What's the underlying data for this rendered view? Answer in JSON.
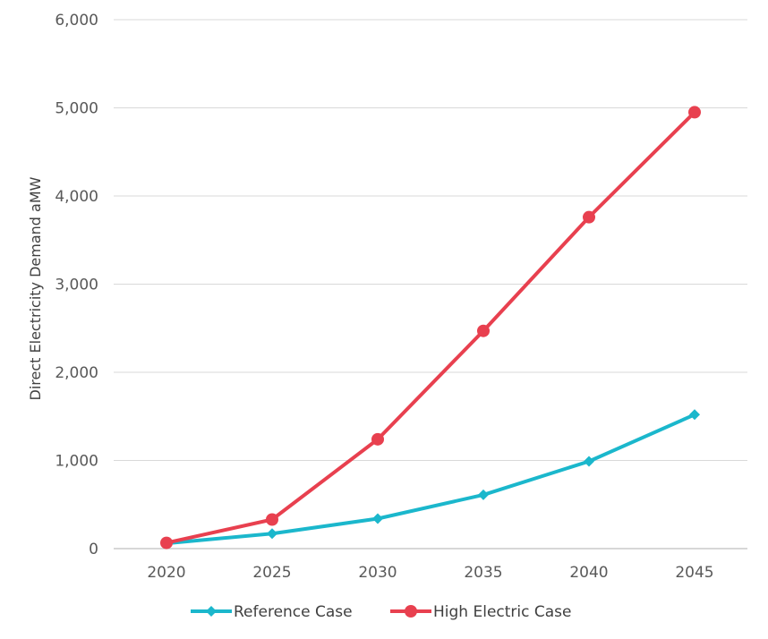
{
  "chart_data": {
    "type": "line",
    "title": "",
    "xlabel": "",
    "ylabel": "Direct Electricity Demand aMW",
    "x": [
      "2020",
      "2025",
      "2030",
      "2035",
      "2040",
      "2045"
    ],
    "ylim": [
      0,
      6000
    ],
    "yticks": [
      0,
      1000,
      2000,
      3000,
      4000,
      5000,
      6000
    ],
    "ytick_labels": [
      "0",
      "1,000",
      "2,000",
      "3,000",
      "4,000",
      "5,000",
      "6,000"
    ],
    "grid": true,
    "legend_position": "bottom",
    "series": [
      {
        "name": "Reference Case",
        "color": "#1bb7cc",
        "marker": "diamond",
        "values": [
          60,
          170,
          340,
          610,
          990,
          1520
        ]
      },
      {
        "name": "High Electric Case",
        "color": "#e8404f",
        "marker": "circle",
        "values": [
          65,
          330,
          1240,
          2470,
          3760,
          4950
        ]
      }
    ]
  }
}
